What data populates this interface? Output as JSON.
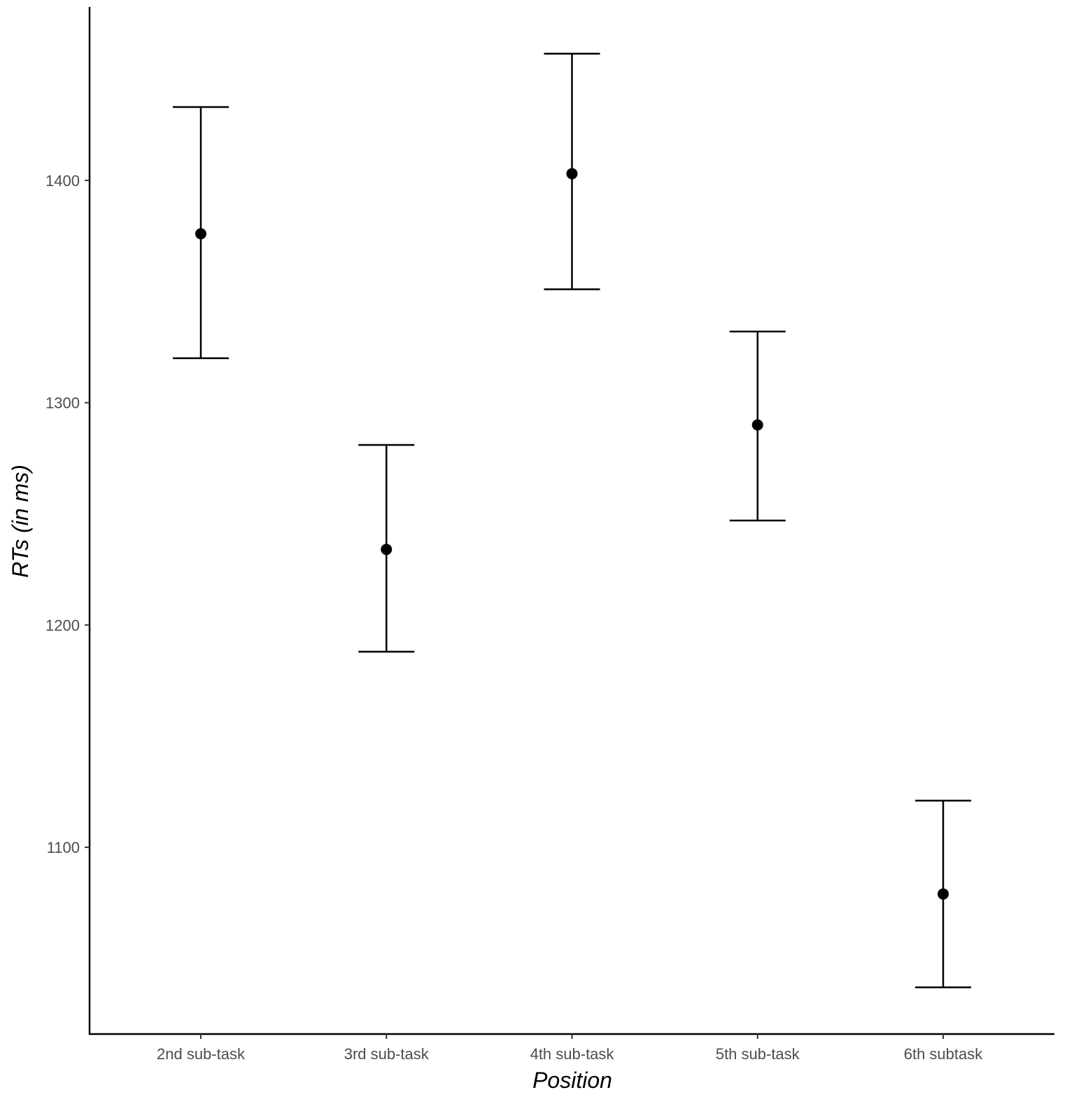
{
  "chart_data": {
    "type": "scatter",
    "subtype": "point-with-error-bars",
    "title": "",
    "xlabel": "Position",
    "ylabel": "RTs (in ms)",
    "categories": [
      "2nd sub-task",
      "3rd sub-task",
      "4th sub-task",
      "5th sub-task",
      "6th subtask"
    ],
    "values": [
      1376,
      1234,
      1403,
      1290,
      1079
    ],
    "error_upper": [
      1433,
      1281,
      1457,
      1332,
      1121
    ],
    "error_lower": [
      1320,
      1188,
      1351,
      1247,
      1037
    ],
    "ylim": [
      1016,
      1478
    ],
    "yticks": [
      1100,
      1200,
      1300,
      1400
    ],
    "ytick_labels": [
      "1100",
      "1200",
      "1300",
      "1400"
    ],
    "grid": false,
    "legend": "none",
    "colors": {
      "marks": "#000000",
      "tick_text": "#4d4d4d"
    }
  }
}
